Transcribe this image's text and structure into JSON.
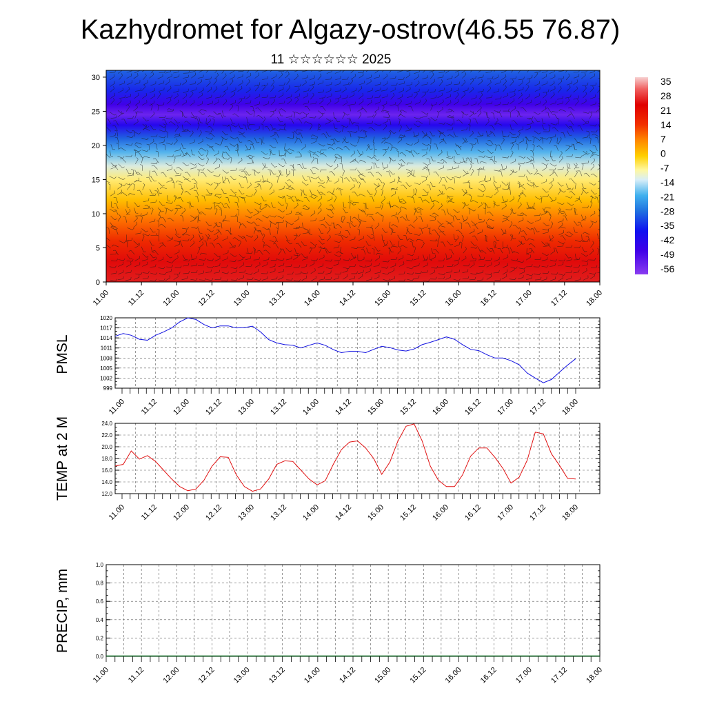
{
  "header": {
    "title": "Kazhydromet for Algazy-ostrov(46.55 76.87)",
    "subtitle": "11 ☆☆☆☆☆☆ 2025"
  },
  "colors": {
    "pressure_line": "#1010e0",
    "temperature_line": "#e01010",
    "precip_baseline": "#0a6a20",
    "grid": "#555555"
  },
  "chart_data": [
    {
      "type": "heatmap",
      "title": "",
      "xlabel": "",
      "ylabel": "",
      "x_ticks": [
        "11.00",
        "11.12",
        "12.00",
        "12.12",
        "13.00",
        "13.12",
        "14.00",
        "14.12",
        "15.00",
        "15.12",
        "16.00",
        "16.12",
        "17.00",
        "17.12",
        "18.00"
      ],
      "ylim": [
        0,
        31
      ],
      "y_ticks": [
        0,
        5,
        10,
        15,
        20,
        25,
        30
      ],
      "overlay": "wind barbs",
      "colorbar": {
        "labels": [
          "35",
          "28",
          "21",
          "14",
          "7",
          "0",
          "-7",
          "-14",
          "-21",
          "-28",
          "-35",
          "-42",
          "-49",
          "-56"
        ],
        "range": [
          -60,
          38
        ]
      },
      "height_temperature_profile": [
        {
          "h": 0,
          "t": 28
        },
        {
          "h": 3,
          "t": 24
        },
        {
          "h": 6,
          "t": 17
        },
        {
          "h": 9,
          "t": 9
        },
        {
          "h": 12,
          "t": 0
        },
        {
          "h": 15,
          "t": -9
        },
        {
          "h": 17,
          "t": -17
        },
        {
          "h": 19,
          "t": -28
        },
        {
          "h": 21,
          "t": -40
        },
        {
          "h": 23,
          "t": -52
        },
        {
          "h": 24.5,
          "t": -58
        },
        {
          "h": 26,
          "t": -55
        },
        {
          "h": 28,
          "t": -47
        },
        {
          "h": 31,
          "t": -40
        }
      ]
    },
    {
      "type": "line",
      "ylabel": "PMSL",
      "ylim": [
        999,
        1020
      ],
      "y_ticks": [
        "1020",
        "1017",
        "1014",
        "1011",
        "1008",
        "1005",
        "1002",
        "999"
      ],
      "x_ticks": [
        "11.00",
        "11.12",
        "12.00",
        "12.12",
        "13.00",
        "13.12",
        "14.00",
        "14.12",
        "15.00",
        "15.12",
        "16.00",
        "16.12",
        "17.00",
        "17.12",
        "18.00"
      ],
      "series": [
        {
          "values": [
            1014.5,
            1015.3,
            1014.8,
            1013.6,
            1013.3,
            1014.8,
            1015.8,
            1017.0,
            1018.8,
            1020.0,
            1019.5,
            1018.0,
            1017.0,
            1017.6,
            1017.6,
            1017.0,
            1017.1,
            1017.5,
            1015.8,
            1013.5,
            1012.5,
            1012.0,
            1011.8,
            1011.0,
            1011.8,
            1012.5,
            1011.8,
            1010.5,
            1009.6,
            1010.0,
            1010.0,
            1009.6,
            1010.6,
            1011.5,
            1011.1,
            1010.4,
            1010.1,
            1010.7,
            1012.0,
            1012.7,
            1013.5,
            1014.3,
            1013.6,
            1012.0,
            1010.6,
            1010.2,
            1009.0,
            1008.0,
            1008.0,
            1007.2,
            1006.0,
            1003.5,
            1002.0,
            1000.6,
            1001.6,
            1003.8,
            1005.9,
            1007.8
          ]
        }
      ]
    },
    {
      "type": "line",
      "ylabel": "TEMP at 2 M",
      "ylim": [
        12.0,
        24.0
      ],
      "y_ticks": [
        "24.0",
        "22.0",
        "20.0",
        "18.0",
        "16.0",
        "14.0",
        "12.0"
      ],
      "x_ticks": [
        "11.00",
        "11.12",
        "12.00",
        "12.12",
        "13.00",
        "13.12",
        "14.00",
        "14.12",
        "15.00",
        "15.12",
        "16.00",
        "16.12",
        "17.00",
        "17.12",
        "18.00"
      ],
      "series": [
        {
          "values": [
            16.7,
            17.0,
            19.3,
            17.9,
            18.5,
            17.5,
            16.0,
            14.5,
            13.2,
            12.5,
            12.8,
            14.3,
            16.7,
            18.3,
            18.2,
            15.2,
            13.2,
            12.4,
            12.8,
            14.5,
            17.0,
            17.6,
            17.5,
            16.0,
            14.5,
            13.5,
            14.2,
            17.0,
            19.5,
            20.8,
            21.0,
            19.8,
            18.0,
            15.3,
            17.4,
            21.0,
            23.5,
            23.9,
            21.0,
            16.7,
            14.3,
            13.2,
            13.2,
            15.2,
            18.4,
            19.8,
            19.8,
            18.2,
            16.3,
            13.8,
            14.8,
            17.7,
            22.5,
            22.2,
            18.8,
            16.8,
            14.6,
            14.5
          ]
        }
      ]
    },
    {
      "type": "line",
      "ylabel": "PRECIP, mm",
      "ylim": [
        0.0,
        1.0
      ],
      "y_ticks": [
        "1.0",
        "0.8",
        "0.6",
        "0.4",
        "0.2",
        "0.0"
      ],
      "x_ticks": [
        "11.00",
        "11.12",
        "12.00",
        "12.12",
        "13.00",
        "13.12",
        "14.00",
        "14.12",
        "15.00",
        "15.12",
        "16.00",
        "16.12",
        "17.00",
        "17.12",
        "18.00"
      ],
      "series": [
        {
          "values": [
            0,
            0,
            0,
            0,
            0,
            0,
            0,
            0,
            0,
            0,
            0,
            0,
            0,
            0,
            0,
            0,
            0,
            0,
            0,
            0,
            0,
            0,
            0,
            0,
            0,
            0,
            0,
            0,
            0,
            0,
            0,
            0,
            0,
            0,
            0,
            0,
            0,
            0,
            0,
            0,
            0,
            0,
            0,
            0,
            0,
            0,
            0,
            0,
            0,
            0,
            0,
            0,
            0,
            0,
            0,
            0,
            0,
            0
          ]
        }
      ]
    }
  ]
}
